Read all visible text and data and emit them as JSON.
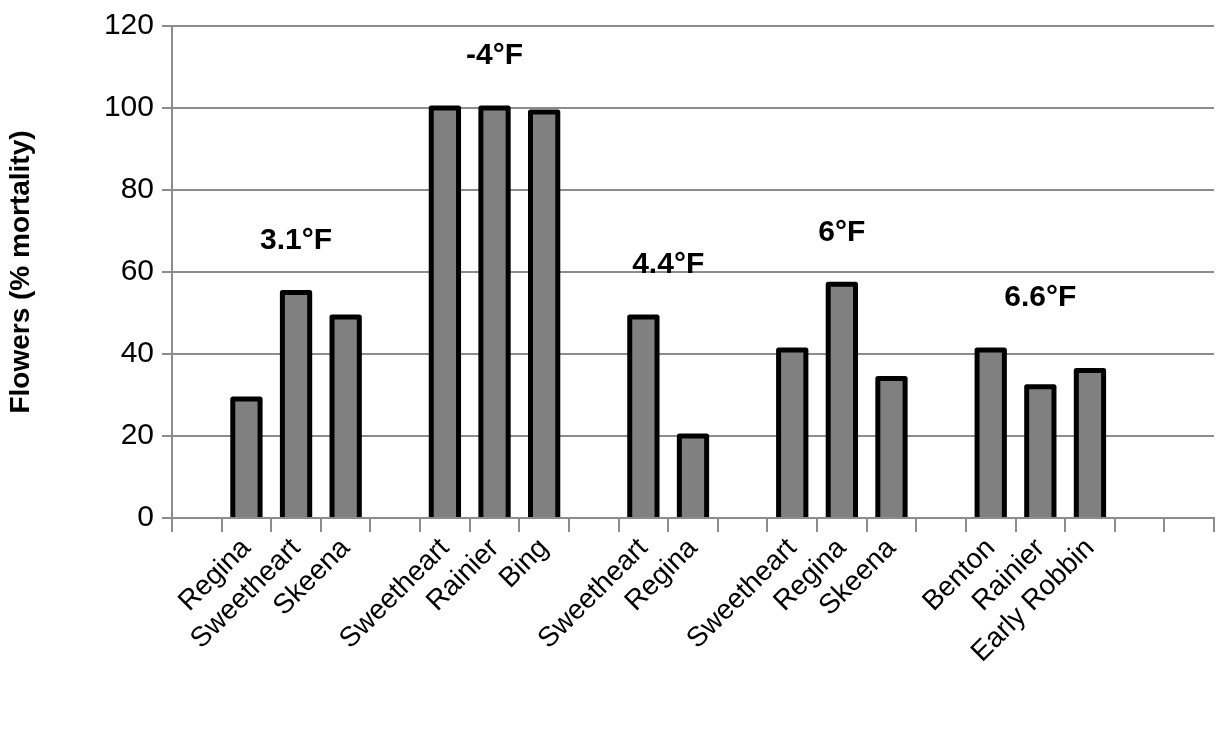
{
  "chart_data": {
    "type": "bar",
    "ylabel": "Flowers (% mortality)",
    "categories": [
      null,
      "Regina",
      "Sweetheart",
      "Skeena",
      null,
      "Sweetheart",
      "Rainier",
      "Bing",
      null,
      "Sweetheart",
      "Regina",
      null,
      "Sweetheart",
      "Regina",
      "Skeena",
      null,
      "Benton",
      "Rainier",
      "Early Robbin",
      null,
      null
    ],
    "values": [
      null,
      29,
      55,
      49,
      null,
      100,
      100,
      99,
      null,
      49,
      20,
      null,
      41,
      57,
      34,
      null,
      41,
      32,
      36,
      null,
      null
    ],
    "color": "#808080",
    "ylim": [
      0,
      120
    ],
    "yticks": [
      0,
      20,
      40,
      60,
      80,
      100,
      120
    ],
    "grid": "y",
    "legend": false,
    "annotations": [
      "3.1°F",
      "-4°F",
      "4.4°F",
      "6°F",
      "6.6°F"
    ]
  }
}
